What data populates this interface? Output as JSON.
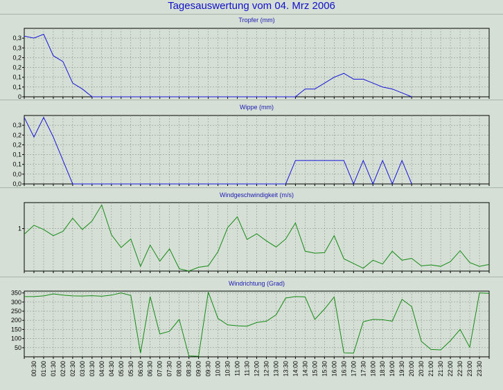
{
  "title": "Tagesauswertung vom 04. Mrz 2006",
  "chart_data": [
    {
      "type": "line",
      "title": "Tropfer (mm)",
      "color": "#1515d8",
      "ylim": [
        0,
        0.35
      ],
      "yticks": [
        0,
        0.05,
        0.1,
        0.15,
        0.2,
        0.25,
        0.3
      ],
      "ytick_labels": [
        "0",
        "0,1",
        "0,1",
        "0,2",
        "0,2",
        "0,3",
        "0,3"
      ],
      "x": [
        0,
        0.5,
        1,
        1.5,
        2,
        2.5,
        3,
        3.5,
        14,
        14.5,
        15,
        15.5,
        16,
        16.5,
        17,
        17.5,
        18,
        18.5,
        19,
        19.5,
        20
      ],
      "y": [
        0.31,
        0.3,
        0.32,
        0.21,
        0.18,
        0.07,
        0.04,
        0.0,
        0.0,
        0.04,
        0.04,
        0.07,
        0.1,
        0.12,
        0.09,
        0.09,
        0.07,
        0.05,
        0.04,
        0.02,
        0.0
      ]
    },
    {
      "type": "line",
      "title": "Wippe (mm)",
      "color": "#1515d8",
      "ylim": [
        0,
        0.35
      ],
      "yticks": [
        0,
        0.05,
        0.1,
        0.15,
        0.2,
        0.25,
        0.3
      ],
      "ytick_labels": [
        "0,0",
        "0,0",
        "0,1",
        "0,1",
        "0,2",
        "0,2",
        "0,3"
      ],
      "x": [
        0,
        0.5,
        1,
        1.5,
        2,
        2.5,
        13,
        13.5,
        14,
        14.5,
        15,
        15.5,
        16,
        16.5,
        17,
        17.5,
        18,
        18.5,
        19,
        19.5,
        20
      ],
      "y": [
        0.34,
        0.24,
        0.34,
        0.24,
        0.12,
        0.0,
        0.0,
        0.0,
        0.12,
        0.12,
        0.12,
        0.12,
        0.12,
        0.12,
        0.0,
        0.12,
        0.0,
        0.12,
        0.0,
        0.12,
        0.0
      ]
    },
    {
      "type": "line",
      "title": "Windgeschwindigkeit (m/s)",
      "color": "#138a13",
      "ylim": [
        0.1,
        1.55
      ],
      "yticks": [
        1
      ],
      "ytick_labels": [
        "1"
      ],
      "x": [
        0,
        0.5,
        1,
        1.5,
        2,
        2.5,
        3,
        3.5,
        4,
        4.5,
        5,
        5.5,
        6,
        6.5,
        7,
        7.5,
        8,
        8.5,
        9,
        9.5,
        10,
        10.5,
        11,
        11.5,
        12,
        12.5,
        13,
        13.5,
        14,
        14.5,
        15,
        15.5,
        16,
        16.5,
        17,
        17.5,
        18,
        18.5,
        19,
        19.5,
        20,
        20.5,
        21,
        21.5,
        22,
        22.5,
        23,
        23.5,
        24
      ],
      "y": [
        0.88,
        1.07,
        0.98,
        0.85,
        0.94,
        1.22,
        0.98,
        1.16,
        1.5,
        0.87,
        0.6,
        0.78,
        0.2,
        0.65,
        0.31,
        0.57,
        0.15,
        0.1,
        0.18,
        0.21,
        0.51,
        1.02,
        1.25,
        0.77,
        0.89,
        0.74,
        0.61,
        0.78,
        1.12,
        0.52,
        0.48,
        0.49,
        0.85,
        0.36,
        0.26,
        0.16,
        0.33,
        0.25,
        0.52,
        0.33,
        0.37,
        0.21,
        0.23,
        0.2,
        0.3,
        0.53,
        0.28,
        0.2,
        0.24
      ]
    },
    {
      "type": "line",
      "title": "Windrichtung (Grad)",
      "color": "#138a13",
      "ylim": [
        0,
        360
      ],
      "yticks": [
        50,
        100,
        150,
        200,
        250,
        300,
        350
      ],
      "ytick_labels": [
        "50",
        "100",
        "150",
        "200",
        "250",
        "300",
        "350"
      ],
      "x": [
        0,
        0.5,
        1,
        1.5,
        2,
        2.5,
        3,
        3.5,
        4,
        4.5,
        5,
        5.5,
        6,
        6.5,
        7,
        7.5,
        8,
        8.5,
        9,
        9.5,
        10,
        10.5,
        11,
        11.5,
        12,
        12.5,
        13,
        13.5,
        14,
        14.5,
        15,
        15.5,
        16,
        16.5,
        17,
        17.5,
        18,
        18.5,
        19,
        19.5,
        20,
        20.5,
        21,
        21.5,
        22,
        22.5,
        23,
        23.5,
        24
      ],
      "y": [
        330,
        330,
        334,
        345,
        338,
        334,
        333,
        335,
        332,
        338,
        350,
        336,
        20,
        330,
        125,
        140,
        205,
        5,
        3,
        355,
        210,
        175,
        170,
        168,
        188,
        195,
        230,
        322,
        330,
        328,
        205,
        262,
        328,
        22,
        20,
        192,
        205,
        203,
        195,
        315,
        275,
        85,
        40,
        38,
        88,
        150,
        52,
        350,
        348
      ],
      "x_tick_labels": [
        "00:30",
        "01:00",
        "01:30",
        "02:00",
        "02:30",
        "03:00",
        "03:30",
        "04:00",
        "04:30",
        "05:00",
        "05:30",
        "06:00",
        "06:30",
        "07:00",
        "07:30",
        "08:00",
        "08:30",
        "09:00",
        "09:30",
        "10:00",
        "10:30",
        "11:00",
        "11:30",
        "12:00",
        "12:30",
        "13:00",
        "13:30",
        "14:00",
        "14:30",
        "15:00",
        "15:30",
        "16:00",
        "16:30",
        "17:00",
        "17:30",
        "18:00",
        "18:30",
        "19:00",
        "19:30",
        "20:00",
        "20:30",
        "21:00",
        "21:30",
        "22:00",
        "22:30",
        "23:00",
        "23:30"
      ]
    }
  ]
}
